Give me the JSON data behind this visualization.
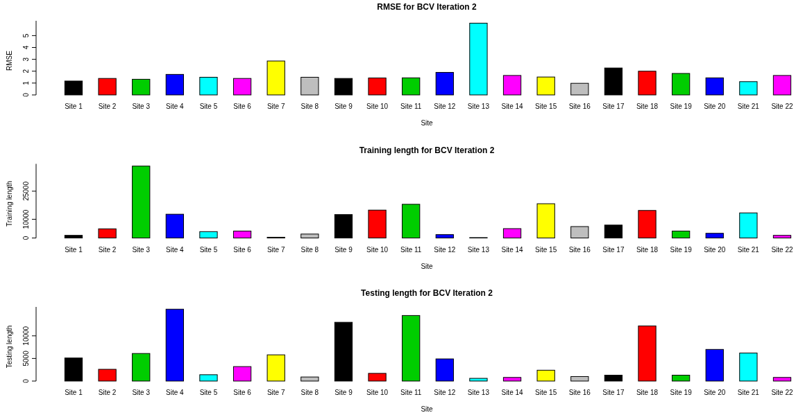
{
  "chart_data": [
    {
      "type": "bar",
      "title": "RMSE for BCV Iteration 2",
      "xlabel": "Site",
      "ylabel": "RMSE",
      "categories": [
        "Site 1",
        "Site 2",
        "Site 3",
        "Site 4",
        "Site 5",
        "Site 6",
        "Site 7",
        "Site 8",
        "Site 9",
        "Site 10",
        "Site 11",
        "Site 12",
        "Site 13",
        "Site 14",
        "Site 15",
        "Site 16",
        "Site 17",
        "Site 18",
        "Site 19",
        "Site 20",
        "Site 21",
        "Site 22"
      ],
      "values": [
        1.17,
        1.39,
        1.32,
        1.73,
        1.49,
        1.39,
        2.86,
        1.49,
        1.39,
        1.43,
        1.44,
        1.9,
        6.05,
        1.64,
        1.51,
        0.98,
        2.27,
        2.0,
        1.81,
        1.44,
        1.12,
        1.64
      ],
      "colors": [
        "#000000",
        "#ff0000",
        "#00cd00",
        "#0000ff",
        "#00ffff",
        "#ff00ff",
        "#ffff00",
        "#bebebe",
        "#000000",
        "#ff0000",
        "#00cd00",
        "#0000ff",
        "#00ffff",
        "#ff00ff",
        "#ffff00",
        "#bebebe",
        "#000000",
        "#ff0000",
        "#00cd00",
        "#0000ff",
        "#00ffff",
        "#ff00ff"
      ],
      "ylim": [
        0,
        6.25
      ],
      "yticks": [
        0,
        1,
        2,
        3,
        4,
        5
      ],
      "grid": false
    },
    {
      "type": "bar",
      "title": "Training length for BCV Iteration 2",
      "xlabel": "Site",
      "ylabel": "Training length",
      "categories": [
        "Site 1",
        "Site 2",
        "Site 3",
        "Site 4",
        "Site 5",
        "Site 6",
        "Site 7",
        "Site 8",
        "Site 9",
        "Site 10",
        "Site 11",
        "Site 12",
        "Site 13",
        "Site 14",
        "Site 15",
        "Site 16",
        "Site 17",
        "Site 18",
        "Site 19",
        "Site 20",
        "Site 21",
        "Site 22"
      ],
      "values": [
        1400,
        4900,
        38400,
        12700,
        3400,
        3700,
        400,
        2100,
        12500,
        14900,
        18000,
        1800,
        200,
        5000,
        18300,
        6100,
        6900,
        14700,
        3700,
        2500,
        13400,
        1400
      ],
      "colors": [
        "#000000",
        "#ff0000",
        "#00cd00",
        "#0000ff",
        "#00ffff",
        "#ff00ff",
        "#ffff00",
        "#bebebe",
        "#000000",
        "#ff0000",
        "#00cd00",
        "#0000ff",
        "#00ffff",
        "#ff00ff",
        "#ffff00",
        "#bebebe",
        "#000000",
        "#ff0000",
        "#00cd00",
        "#0000ff",
        "#00ffff",
        "#ff00ff"
      ],
      "ylim": [
        0,
        39600
      ],
      "yticks": [
        0,
        10000,
        25000
      ],
      "grid": false
    },
    {
      "type": "bar",
      "title": "Testing length for BCV Iteration 2",
      "xlabel": "Site",
      "ylabel": "Testing length",
      "categories": [
        "Site 1",
        "Site 2",
        "Site 3",
        "Site 4",
        "Site 5",
        "Site 6",
        "Site 7",
        "Site 8",
        "Site 9",
        "Site 10",
        "Site 11",
        "Site 12",
        "Site 13",
        "Site 14",
        "Site 15",
        "Site 16",
        "Site 17",
        "Site 18",
        "Site 19",
        "Site 20",
        "Site 21",
        "Site 22"
      ],
      "values": [
        5100,
        2600,
        6100,
        15900,
        1400,
        3200,
        5800,
        900,
        13000,
        1700,
        14500,
        4900,
        600,
        800,
        2400,
        1000,
        1300,
        12200,
        1300,
        7000,
        6200,
        800
      ],
      "colors": [
        "#000000",
        "#ff0000",
        "#00cd00",
        "#0000ff",
        "#00ffff",
        "#ff00ff",
        "#ffff00",
        "#bebebe",
        "#000000",
        "#ff0000",
        "#00cd00",
        "#0000ff",
        "#00ffff",
        "#ff00ff",
        "#ffff00",
        "#bebebe",
        "#000000",
        "#ff0000",
        "#00cd00",
        "#0000ff",
        "#00ffff",
        "#ff00ff"
      ],
      "ylim": [
        0,
        16400
      ],
      "yticks": [
        0,
        5000,
        10000
      ],
      "grid": false
    }
  ]
}
